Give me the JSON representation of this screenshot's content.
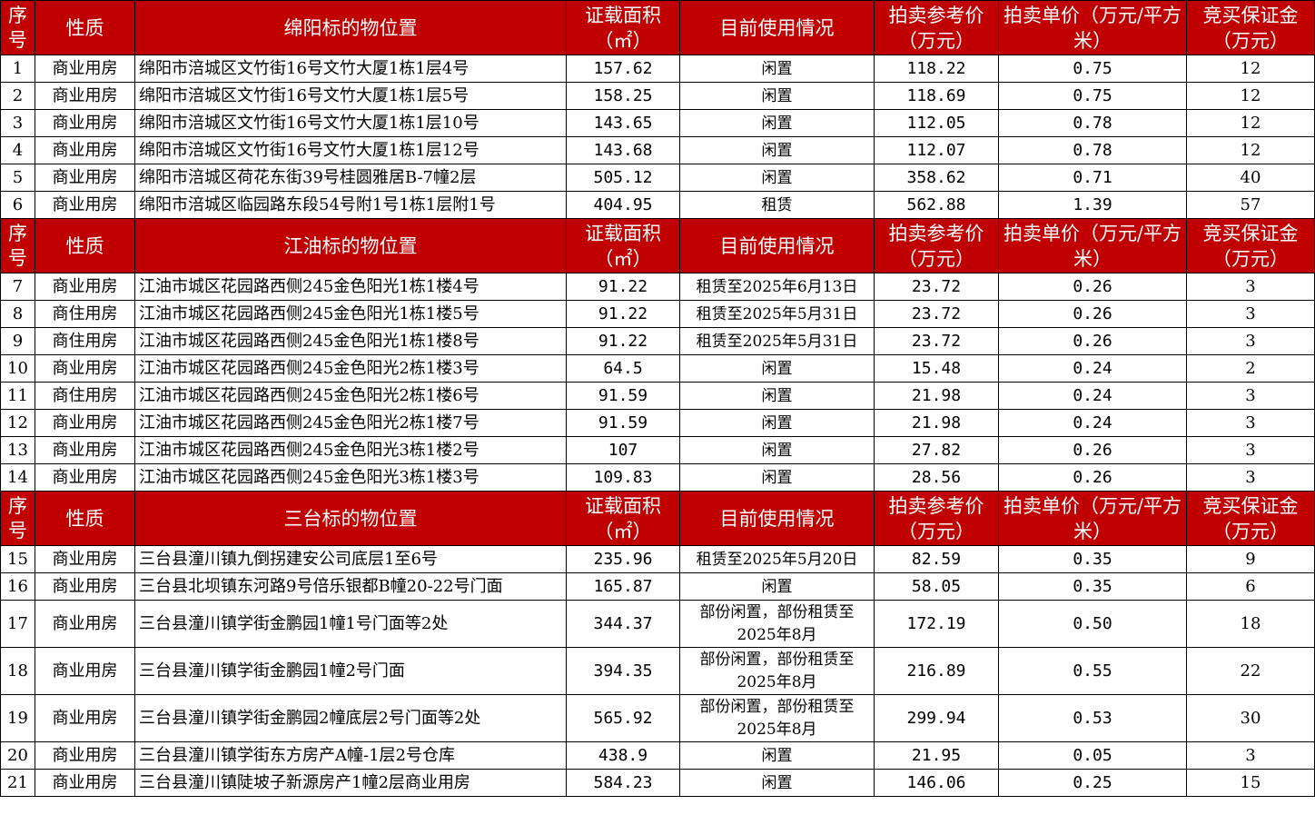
{
  "colors": {
    "header_bg": "#C00000",
    "header_text": "#FFFFFF"
  },
  "sections": [
    {
      "header": {
        "no": "序号",
        "type": "性质",
        "location": "绵阳标的物位置",
        "area": "证载面积（㎡）",
        "usage": "目前使用情况",
        "ref_price": "拍卖参考价（万元）",
        "unit_price": "拍卖单价（万元/平方米）",
        "deposit": "竞买保证金（万元）"
      },
      "rows": [
        {
          "no": "1",
          "type": "商业用房",
          "location": "绵阳市涪城区文竹街16号文竹大厦1栋1层4号",
          "area": "157.62",
          "usage": "闲置",
          "ref_price": "118.22",
          "unit_price": "0.75",
          "deposit": "12"
        },
        {
          "no": "2",
          "type": "商业用房",
          "location": "绵阳市涪城区文竹街16号文竹大厦1栋1层5号",
          "area": "158.25",
          "usage": "闲置",
          "ref_price": "118.69",
          "unit_price": "0.75",
          "deposit": "12"
        },
        {
          "no": "3",
          "type": "商业用房",
          "location": "绵阳市涪城区文竹街16号文竹大厦1栋1层10号",
          "area": "143.65",
          "usage": "闲置",
          "ref_price": "112.05",
          "unit_price": "0.78",
          "deposit": "12"
        },
        {
          "no": "4",
          "type": "商业用房",
          "location": "绵阳市涪城区文竹街16号文竹大厦1栋1层12号",
          "area": "143.68",
          "usage": "闲置",
          "ref_price": "112.07",
          "unit_price": "0.78",
          "deposit": "12"
        },
        {
          "no": "5",
          "type": "商业用房",
          "location": "绵阳市涪城区荷花东街39号桂圆雅居B-7幢2层",
          "area": "505.12",
          "usage": "闲置",
          "ref_price": "358.62",
          "unit_price": "0.71",
          "deposit": "40"
        },
        {
          "no": "6",
          "type": "商业用房",
          "location": "绵阳市涪城区临园路东段54号附1号1栋1层附1号",
          "area": "404.95",
          "usage": "租赁",
          "ref_price": "562.88",
          "unit_price": "1.39",
          "deposit": "57"
        }
      ]
    },
    {
      "header": {
        "no": "序号",
        "type": "性质",
        "location": "江油标的物位置",
        "area": "证载面积（㎡）",
        "usage": "目前使用情况",
        "ref_price": "拍卖参考价（万元）",
        "unit_price": "拍卖单价（万元/平方米）",
        "deposit": "竞买保证金（万元）"
      },
      "rows": [
        {
          "no": "7",
          "type": "商业用房",
          "location": "江油市城区花园路西侧245金色阳光1栋1楼4号",
          "area": "91.22",
          "usage": "租赁至2025年6月13日",
          "ref_price": "23.72",
          "unit_price": "0.26",
          "deposit": "3"
        },
        {
          "no": "8",
          "type": "商住用房",
          "location": "江油市城区花园路西侧245金色阳光1栋1楼5号",
          "area": "91.22",
          "usage": "租赁至2025年5月31日",
          "ref_price": "23.72",
          "unit_price": "0.26",
          "deposit": "3"
        },
        {
          "no": "9",
          "type": "商住用房",
          "location": "江油市城区花园路西侧245金色阳光1栋1楼8号",
          "area": "91.22",
          "usage": "租赁至2025年5月31日",
          "ref_price": "23.72",
          "unit_price": "0.26",
          "deposit": "3"
        },
        {
          "no": "10",
          "type": "商业用房",
          "location": "江油市城区花园路西侧245金色阳光2栋1楼3号",
          "area": "64.5",
          "usage": "闲置",
          "ref_price": "15.48",
          "unit_price": "0.24",
          "deposit": "2"
        },
        {
          "no": "11",
          "type": "商住用房",
          "location": "江油市城区花园路西侧245金色阳光2栋1楼6号",
          "area": "91.59",
          "usage": "闲置",
          "ref_price": "21.98",
          "unit_price": "0.24",
          "deposit": "3"
        },
        {
          "no": "12",
          "type": "商业用房",
          "location": "江油市城区花园路西侧245金色阳光2栋1楼7号",
          "area": "91.59",
          "usage": "闲置",
          "ref_price": "21.98",
          "unit_price": "0.24",
          "deposit": "3"
        },
        {
          "no": "13",
          "type": "商业用房",
          "location": "江油市城区花园路西侧245金色阳光3栋1楼2号",
          "area": "107",
          "usage": "闲置",
          "ref_price": "27.82",
          "unit_price": "0.26",
          "deposit": "3"
        },
        {
          "no": "14",
          "type": "商业用房",
          "location": "江油市城区花园路西侧245金色阳光3栋1楼3号",
          "area": "109.83",
          "usage": "闲置",
          "ref_price": "28.56",
          "unit_price": "0.26",
          "deposit": "3"
        }
      ]
    },
    {
      "header": {
        "no": "序号",
        "type": "性质",
        "location": "三台标的物位置",
        "area": "证载面积（㎡）",
        "usage": "目前使用情况",
        "ref_price": "拍卖参考价（万元）",
        "unit_price": "拍卖单价（万元/平方米）",
        "deposit": "竞买保证金（万元）"
      },
      "rows": [
        {
          "no": "15",
          "type": "商业用房",
          "location": "三台县潼川镇九倒拐建安公司底层1至6号",
          "area": "235.96",
          "usage": "租赁至2025年5月20日",
          "ref_price": "82.59",
          "unit_price": "0.35",
          "deposit": "9"
        },
        {
          "no": "16",
          "type": "商业用房",
          "location": "三台县北坝镇东河路9号倍乐银都B幢20-22号门面",
          "area": "165.87",
          "usage": "闲置",
          "ref_price": "58.05",
          "unit_price": "0.35",
          "deposit": "6"
        },
        {
          "no": "17",
          "type": "商业用房",
          "location": "三台县潼川镇学街金鹏园1幢1号门面等2处",
          "area": "344.37",
          "usage": "部份闲置，部份租赁至2025年8月",
          "ref_price": "172.19",
          "unit_price": "0.50",
          "deposit": "18"
        },
        {
          "no": "18",
          "type": "商业用房",
          "location": "三台县潼川镇学街金鹏园1幢2号门面",
          "area": "394.35",
          "usage": "部份闲置，部份租赁至2025年8月",
          "ref_price": "216.89",
          "unit_price": "0.55",
          "deposit": "22"
        },
        {
          "no": "19",
          "type": "商业用房",
          "location": "三台县潼川镇学街金鹏园2幢底层2号门面等2处",
          "area": "565.92",
          "usage": "部份闲置，部份租赁至2025年8月",
          "ref_price": "299.94",
          "unit_price": "0.53",
          "deposit": "30"
        },
        {
          "no": "20",
          "type": "商业用房",
          "location": "三台县潼川镇学街东方房产A幢-1层2号仓库",
          "area": "438.9",
          "usage": "闲置",
          "ref_price": "21.95",
          "unit_price": "0.05",
          "deposit": "3"
        },
        {
          "no": "21",
          "type": "商业用房",
          "location": "三台县潼川镇陡坡子新源房产1幢2层商业用房",
          "area": "584.23",
          "usage": "闲置",
          "ref_price": "146.06",
          "unit_price": "0.25",
          "deposit": "15"
        }
      ]
    }
  ]
}
